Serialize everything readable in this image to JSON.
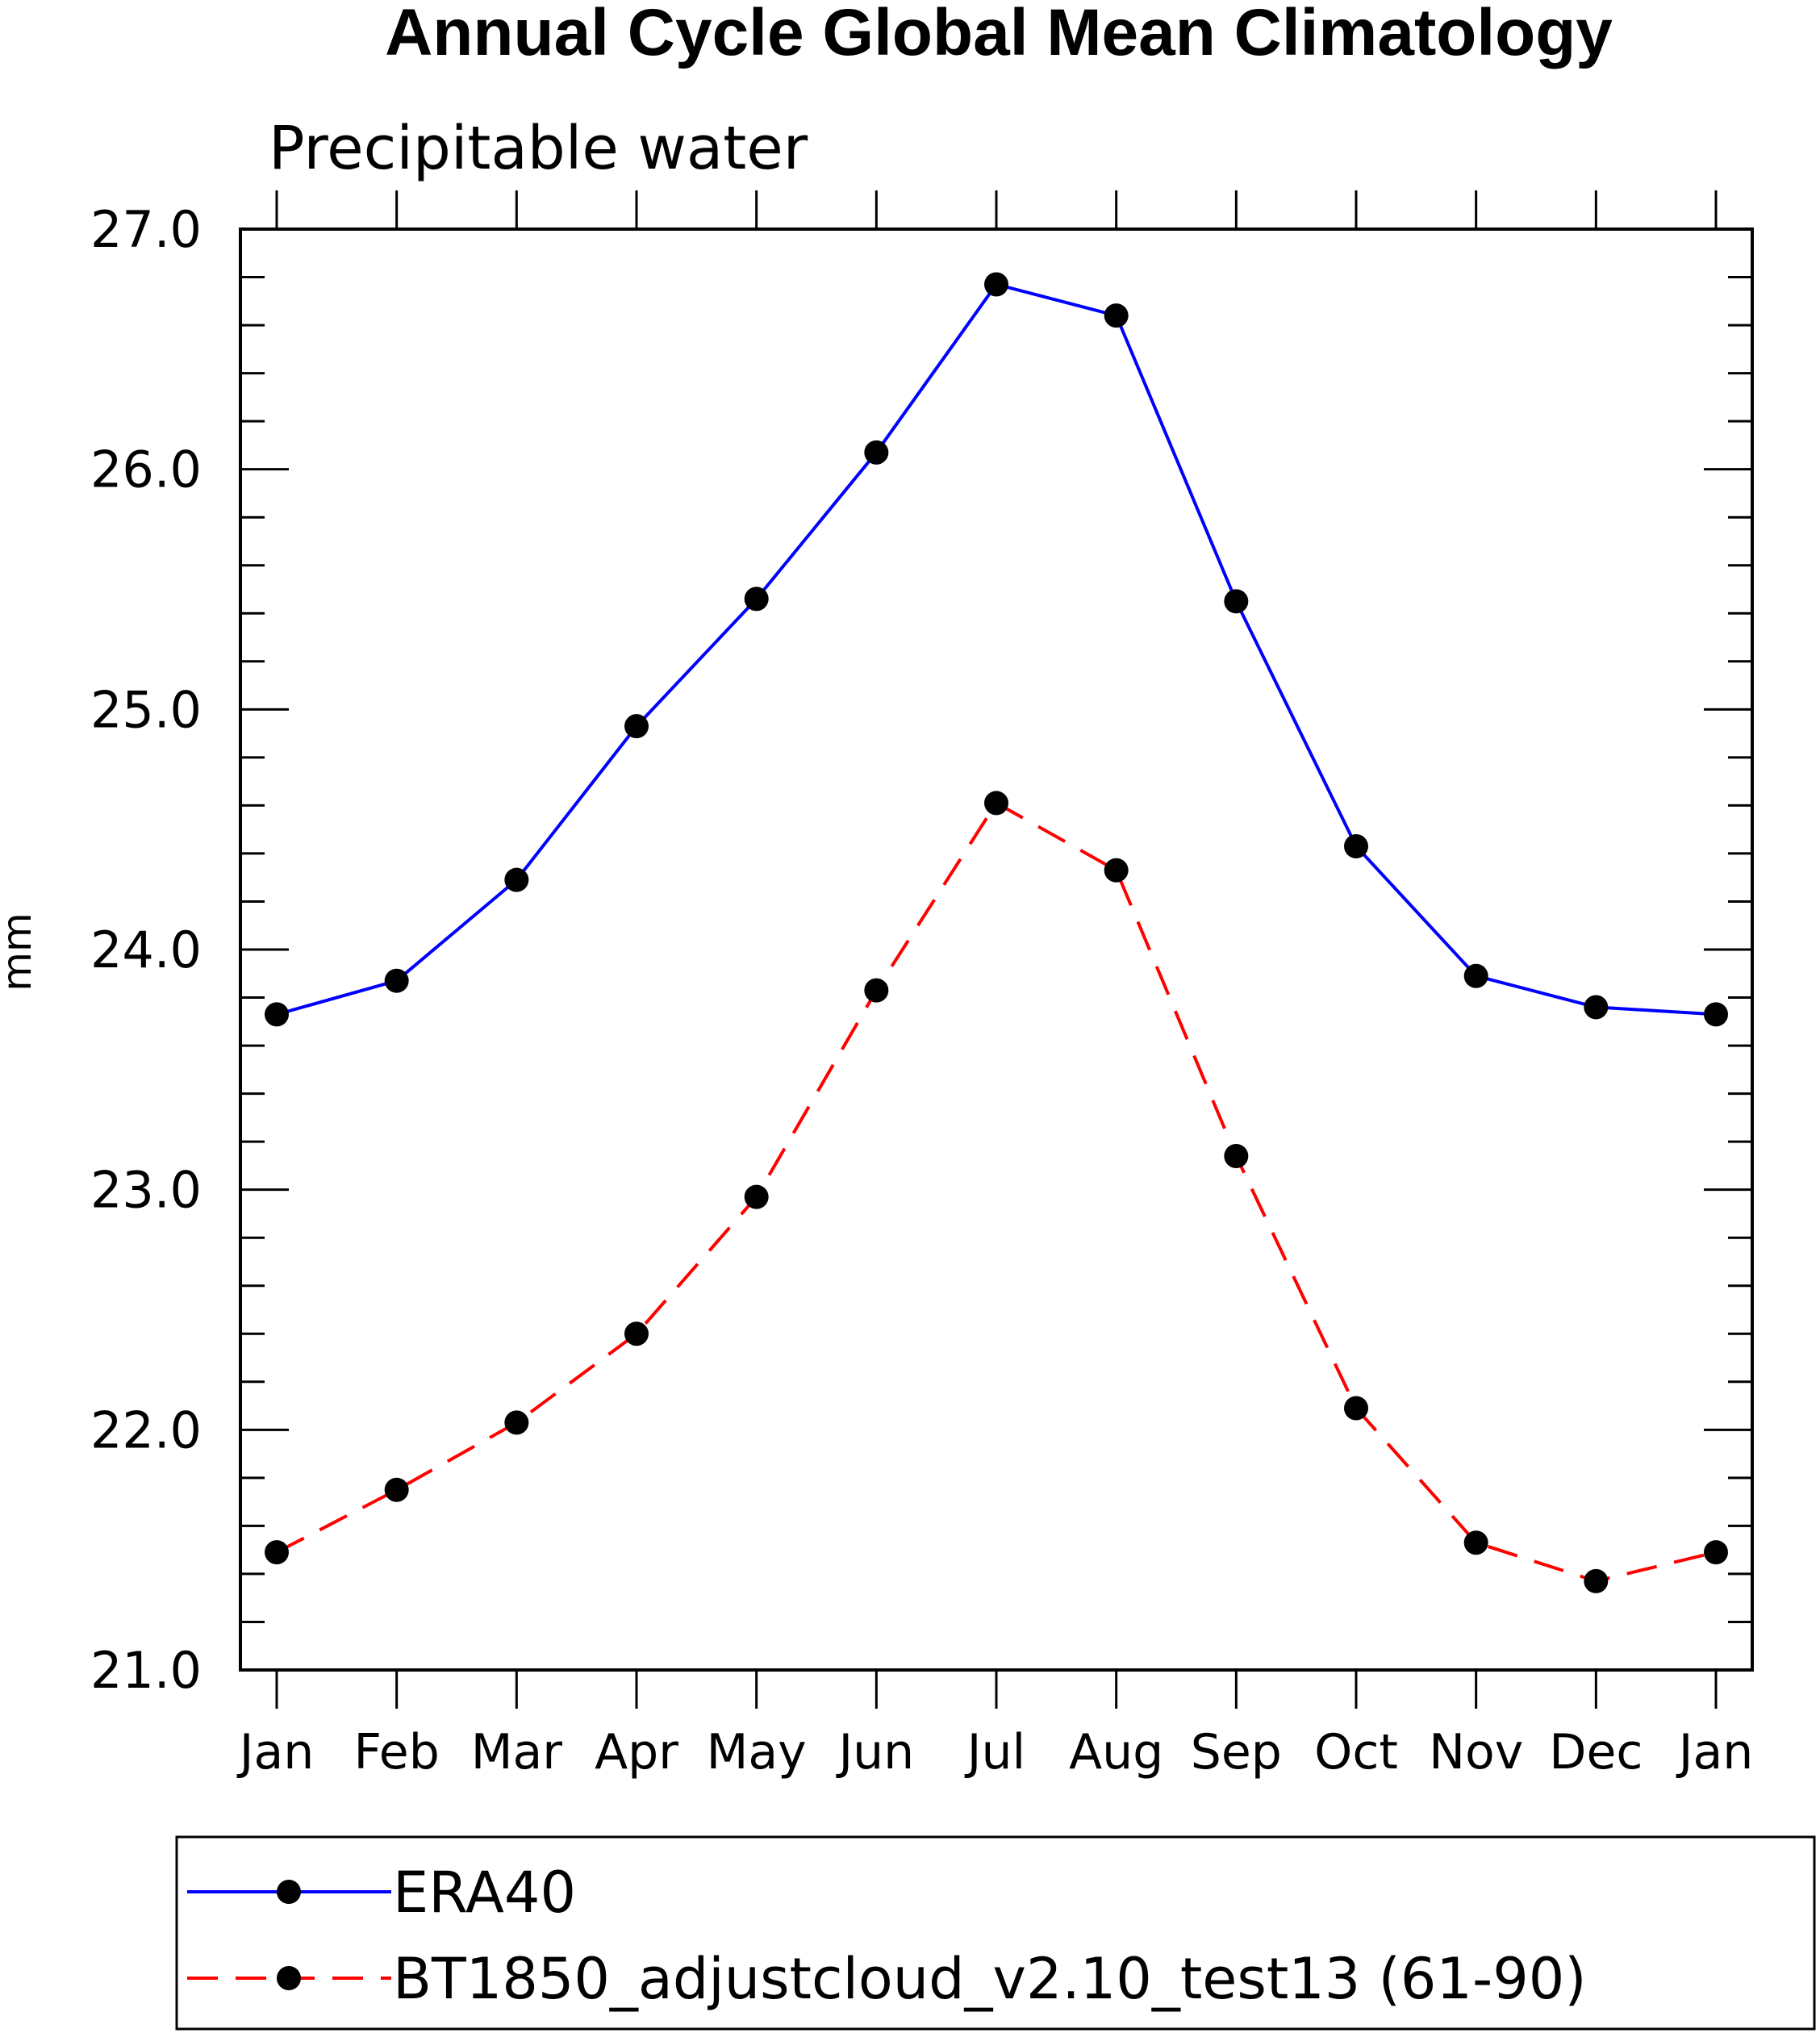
{
  "chart_data": {
    "type": "line",
    "title": "Annual Cycle Global Mean Climatology",
    "subtitle": "Precipitable water",
    "xlabel": "",
    "ylabel": "mm",
    "categories": [
      "Jan",
      "Feb",
      "Mar",
      "Apr",
      "May",
      "Jun",
      "Jul",
      "Aug",
      "Sep",
      "Oct",
      "Nov",
      "Dec",
      "Jan"
    ],
    "ylim": [
      21.0,
      27.0
    ],
    "yticks": [
      "21.0",
      "22.0",
      "23.0",
      "24.0",
      "25.0",
      "26.0",
      "27.0"
    ],
    "grid": false,
    "legend_position": "bottom",
    "series": [
      {
        "name": "ERA40",
        "color": "#0000ff",
        "line_style": "solid",
        "marker": "filled-circle",
        "values": [
          23.73,
          23.87,
          24.29,
          24.93,
          25.46,
          26.07,
          26.77,
          26.64,
          25.45,
          24.43,
          23.89,
          23.76,
          23.73
        ]
      },
      {
        "name": "BT1850_adjustcloud_v2.10_test13 (61-90)",
        "color": "#ff0000",
        "line_style": "dashed",
        "marker": "filled-circle",
        "values": [
          21.49,
          21.75,
          22.03,
          22.4,
          22.97,
          23.83,
          24.61,
          24.33,
          23.14,
          22.09,
          21.53,
          21.37,
          21.49
        ]
      }
    ]
  }
}
